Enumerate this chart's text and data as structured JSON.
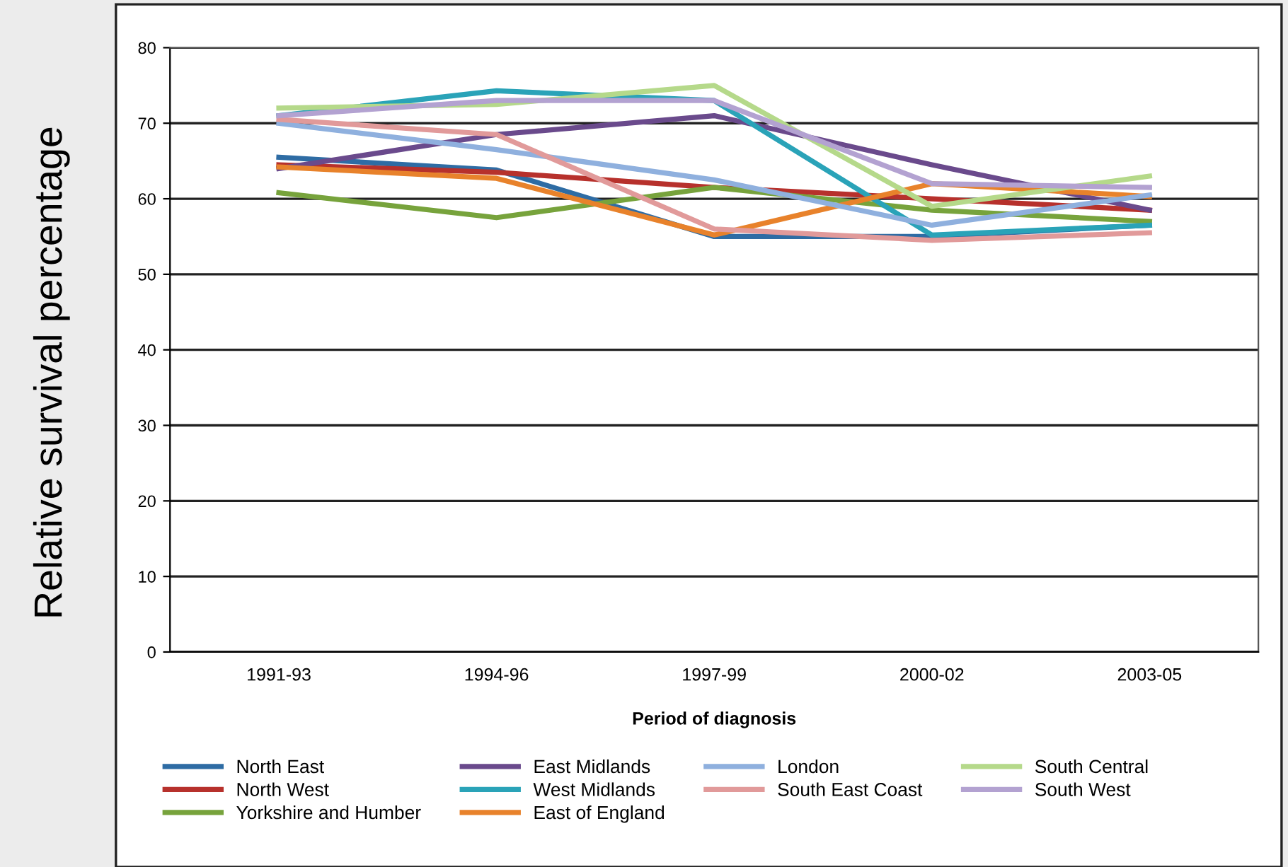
{
  "chart_data": {
    "type": "line",
    "xlabel": "Period of diagnosis",
    "ylabel": "Relative survival percentage",
    "categories": [
      "1991-93",
      "1994-96",
      "1997-99",
      "2000-02",
      "2003-05"
    ],
    "ylim": [
      0,
      80
    ],
    "yticks": [
      0,
      10,
      20,
      30,
      40,
      50,
      60,
      70,
      80
    ],
    "grid": "y",
    "legend": "bottom",
    "marker": "none",
    "series": [
      {
        "name": "North East",
        "color": "#2e6ca4",
        "values": [
          65.5,
          63.8,
          55,
          55,
          56.5
        ]
      },
      {
        "name": "North West",
        "color": "#b7312c",
        "values": [
          64.5,
          63.5,
          61.5,
          60,
          58.5
        ]
      },
      {
        "name": "Yorkshire and Humber",
        "color": "#77a33c",
        "values": [
          60.8,
          57.5,
          61.5,
          58.5,
          57
        ]
      },
      {
        "name": "East Midlands",
        "color": "#6a4a8c",
        "values": [
          64,
          68.5,
          71,
          64.5,
          58.5
        ]
      },
      {
        "name": "West Midlands",
        "color": "#2aa3b8",
        "values": [
          71,
          74.3,
          73,
          55.2,
          56.5
        ]
      },
      {
        "name": "East of England",
        "color": "#e8822b",
        "values": [
          64.2,
          62.7,
          55.2,
          62,
          60.3
        ]
      },
      {
        "name": "London",
        "color": "#8fb0de",
        "values": [
          70,
          66.5,
          62.5,
          56.5,
          60.5
        ]
      },
      {
        "name": "South East Coast",
        "color": "#e19a9a",
        "values": [
          70.5,
          68.5,
          56,
          54.5,
          55.5
        ]
      },
      {
        "name": "South Central",
        "color": "#b5d98a",
        "values": [
          72,
          72.5,
          75,
          59,
          63
        ]
      },
      {
        "name": "South West",
        "color": "#b3a2d1",
        "values": [
          71,
          73,
          73,
          62,
          61.5
        ]
      }
    ]
  }
}
